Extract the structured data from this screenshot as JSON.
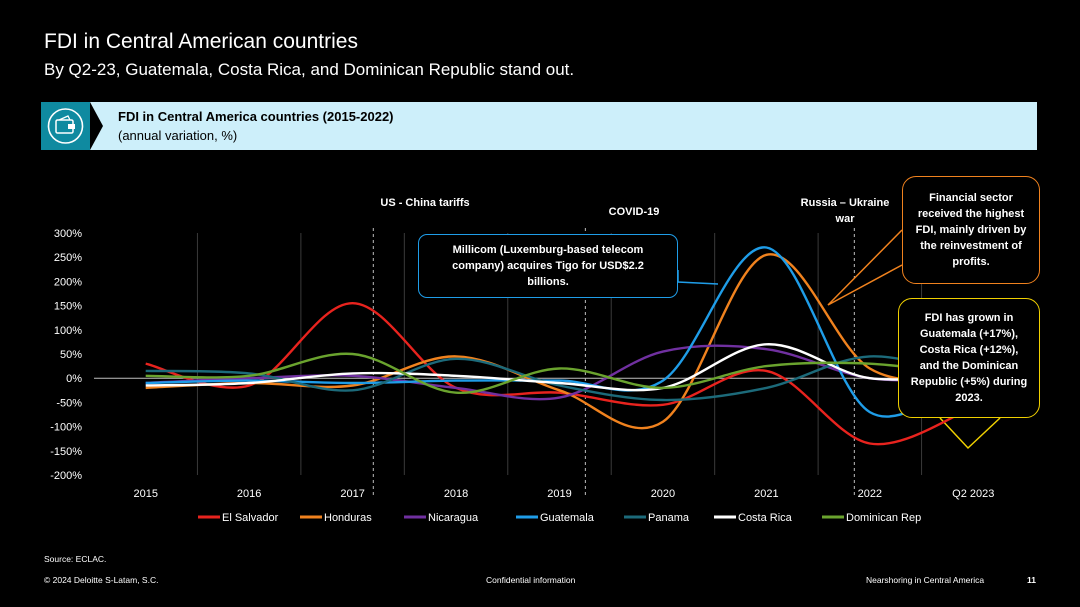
{
  "header": {
    "title": "FDI in Central American countries",
    "subtitle": "By Q2-23, Guatemala, Costa Rica, and Dominican Republic stand out."
  },
  "banner": {
    "title": "FDI in Central America countries (2015-2022)",
    "subtitle": "(annual variation, %)",
    "icon": "wallet-icon"
  },
  "events": {
    "us_china": "US - China tariffs",
    "covid": "COVID-19",
    "russia": "Russia – Ukraine war"
  },
  "callouts": {
    "millicom": "Millicom (Luxemburg-based telecom company) acquires Tigo for USD$2.2 billions.",
    "financial": "Financial sector received the highest FDI, mainly driven by the reinvestment of profits.",
    "growth": "FDI has grown in Guatemala (+17%), Costa Rica (+12%), and the Dominican Republic (+5%) during 2023."
  },
  "footer": {
    "source": "Source: ECLAC.",
    "copyright": "© 2024 Deloitte S-Latam, S.C.",
    "confidential": "Confidential information",
    "section": "Nearshoring in Central America",
    "page": "11"
  },
  "chart_data": {
    "type": "line",
    "categories": [
      "2015",
      "2016",
      "2017",
      "2018",
      "2019",
      "2020",
      "2021",
      "2022",
      "Q2 2023"
    ],
    "ylim": [
      -200,
      300
    ],
    "yticks": [
      -200,
      -150,
      -100,
      -50,
      0,
      50,
      100,
      150,
      200,
      250,
      300
    ],
    "ytick_labels": [
      "-200%",
      "-150%",
      "-100%",
      "-50%",
      "0%",
      "50%",
      "100%",
      "150%",
      "200%",
      "250%",
      "300%"
    ],
    "grid": "vertical",
    "legend": "bottom",
    "series": [
      {
        "name": "El Salvador",
        "color": "#e8231e",
        "values": [
          30,
          -15,
          155,
          -20,
          -30,
          -55,
          15,
          -135,
          -60
        ]
      },
      {
        "name": "Honduras",
        "color": "#f0821e",
        "values": [
          -20,
          -10,
          -15,
          45,
          -25,
          -90,
          255,
          20,
          0
        ]
      },
      {
        "name": "Nicaragua",
        "color": "#7030a0",
        "values": [
          -10,
          0,
          5,
          -20,
          -40,
          55,
          60,
          0,
          0
        ]
      },
      {
        "name": "Guatemala",
        "color": "#1f9de8",
        "values": [
          -10,
          -5,
          -10,
          -5,
          -5,
          -5,
          270,
          -70,
          17
        ]
      },
      {
        "name": "Panama",
        "color": "#1c6a7a",
        "values": [
          15,
          10,
          -25,
          40,
          -15,
          -45,
          -20,
          45,
          0
        ]
      },
      {
        "name": "Costa Rica",
        "color": "#ffffff",
        "values": [
          -15,
          -10,
          10,
          5,
          -10,
          -20,
          70,
          0,
          12
        ]
      },
      {
        "name": "Dominican Rep",
        "color": "#6aa32e",
        "values": [
          5,
          5,
          50,
          -30,
          20,
          -20,
          25,
          30,
          5
        ]
      }
    ]
  }
}
